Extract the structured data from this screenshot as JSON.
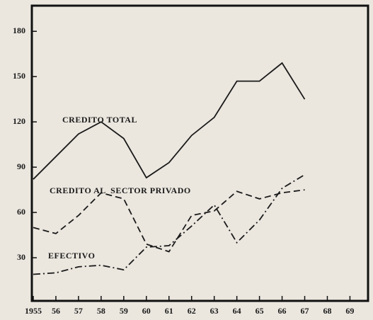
{
  "chart_data": {
    "type": "line",
    "x": [
      1955,
      1956,
      1957,
      1958,
      1959,
      1960,
      1961,
      1962,
      1963,
      1964,
      1965,
      1966,
      1967
    ],
    "series": [
      {
        "name": "CREDITO TOTAL",
        "color": "#1a1a1a",
        "style": "solid",
        "values": [
          82,
          97,
          112,
          120,
          109,
          83,
          93,
          111,
          123,
          147,
          147,
          159,
          135
        ]
      },
      {
        "name": "CREDITO AL  SECTOR PRIVADO",
        "color": "#1a1a1a",
        "style": "dashed",
        "values": [
          50,
          46,
          58,
          73,
          69,
          39,
          34,
          58,
          61,
          74,
          69,
          73,
          75
        ]
      },
      {
        "name": "EFECTIVO",
        "color": "#1a1a1a",
        "style": "dashdot",
        "values": [
          19,
          20,
          24,
          25,
          22,
          37,
          38,
          51,
          65,
          40,
          55,
          76,
          85
        ]
      }
    ],
    "xlim": [
      1955,
      1969.8
    ],
    "xticks": [
      {
        "value": 1955,
        "label": "1955"
      },
      {
        "value": 1956,
        "label": "56"
      },
      {
        "value": 1957,
        "label": "57"
      },
      {
        "value": 1958,
        "label": "58"
      },
      {
        "value": 1959,
        "label": "59"
      },
      {
        "value": 1960,
        "label": "60"
      },
      {
        "value": 1961,
        "label": "61"
      },
      {
        "value": 1962,
        "label": "62"
      },
      {
        "value": 1963,
        "label": "63"
      },
      {
        "value": 1964,
        "label": "64"
      },
      {
        "value": 1965,
        "label": "65"
      },
      {
        "value": 1966,
        "label": "66"
      },
      {
        "value": 1967,
        "label": "67"
      },
      {
        "value": 1968,
        "label": "68"
      },
      {
        "value": 1969,
        "label": "69"
      }
    ],
    "ylim": [
      0,
      197
    ],
    "yticks": [
      30,
      60,
      90,
      120,
      150,
      180
    ],
    "grid": false
  }
}
